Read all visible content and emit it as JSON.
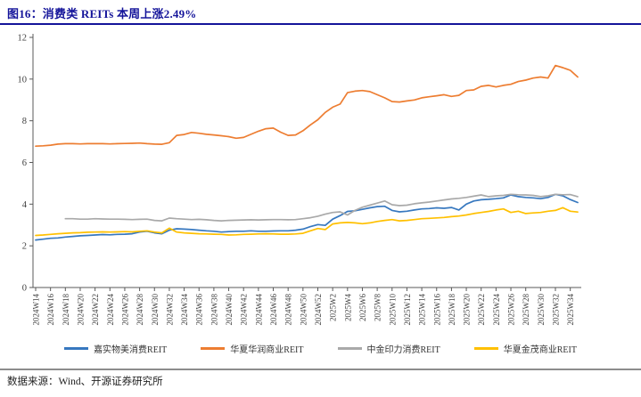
{
  "figure": {
    "title": "图16：消费类 REITs 本周上涨2.49%",
    "source": "数据来源：Wind、开源证券研究所",
    "accent_color": "#14149A",
    "axis_color": "#595959",
    "tick_text_color": "#404040"
  },
  "chart_data": {
    "type": "line",
    "title": "消费类 REITs 本周上涨2.49%",
    "xlabel": "",
    "ylabel": "",
    "ylim": [
      0,
      12
    ],
    "yticks": [
      0,
      2,
      4,
      6,
      8,
      10,
      12
    ],
    "grid": false,
    "legend_position": "bottom",
    "x": [
      "2024W14",
      "2024W15",
      "2024W16",
      "2024W17",
      "2024W18",
      "2024W19",
      "2024W20",
      "2024W21",
      "2024W22",
      "2024W23",
      "2024W24",
      "2024W25",
      "2024W26",
      "2024W27",
      "2024W28",
      "2024W29",
      "2024W30",
      "2024W31",
      "2024W32",
      "2024W33",
      "2024W34",
      "2024W35",
      "2024W36",
      "2024W37",
      "2024W38",
      "2024W39",
      "2024W40",
      "2024W41",
      "2024W42",
      "2024W43",
      "2024W44",
      "2024W45",
      "2024W46",
      "2024W47",
      "2024W48",
      "2024W49",
      "2024W50",
      "2024W51",
      "2024W52",
      "2025W1",
      "2025W2",
      "2025W3",
      "2025W4",
      "2025W5",
      "2025W6",
      "2025W7",
      "2025W8",
      "2025W9",
      "2025W10",
      "2025W11",
      "2025W12",
      "2025W13",
      "2025W14",
      "2025W15",
      "2025W16",
      "2025W17",
      "2025W18",
      "2025W19",
      "2025W20",
      "2025W21",
      "2025W22",
      "2025W23",
      "2025W24",
      "2025W25",
      "2025W26",
      "2025W27",
      "2025W28",
      "2025W29",
      "2025W30",
      "2025W31",
      "2025W32",
      "2025W33",
      "2025W34",
      "2025W35"
    ],
    "x_tick_label_every": 2,
    "series": [
      {
        "name": "嘉实物美消费REIT",
        "color": "#3778BF",
        "values": [
          2.28,
          2.32,
          2.36,
          2.38,
          2.42,
          2.45,
          2.48,
          2.5,
          2.52,
          2.54,
          2.53,
          2.55,
          2.56,
          2.58,
          2.66,
          2.7,
          2.62,
          2.58,
          2.75,
          2.82,
          2.8,
          2.78,
          2.75,
          2.72,
          2.7,
          2.66,
          2.68,
          2.7,
          2.7,
          2.72,
          2.7,
          2.7,
          2.71,
          2.72,
          2.72,
          2.75,
          2.8,
          2.92,
          3.02,
          2.98,
          3.28,
          3.45,
          3.65,
          3.68,
          3.75,
          3.82,
          3.88,
          3.9,
          3.7,
          3.63,
          3.66,
          3.72,
          3.77,
          3.79,
          3.82,
          3.8,
          3.84,
          3.72,
          4.0,
          4.15,
          4.21,
          4.23,
          4.26,
          4.3,
          4.44,
          4.36,
          4.32,
          4.3,
          4.26,
          4.32,
          4.47,
          4.4,
          4.22,
          4.08
        ]
      },
      {
        "name": "华夏华润商业REIT",
        "color": "#ED7D31",
        "values": [
          6.78,
          6.8,
          6.83,
          6.88,
          6.9,
          6.9,
          6.89,
          6.9,
          6.9,
          6.9,
          6.89,
          6.9,
          6.91,
          6.92,
          6.93,
          6.9,
          6.88,
          6.87,
          6.95,
          7.3,
          7.34,
          7.44,
          7.4,
          7.35,
          7.32,
          7.28,
          7.24,
          7.16,
          7.2,
          7.35,
          7.5,
          7.62,
          7.65,
          7.45,
          7.3,
          7.32,
          7.52,
          7.8,
          8.05,
          8.4,
          8.65,
          8.8,
          9.35,
          9.42,
          9.45,
          9.4,
          9.25,
          9.1,
          8.92,
          8.9,
          8.95,
          9.0,
          9.1,
          9.15,
          9.2,
          9.25,
          9.17,
          9.22,
          9.45,
          9.48,
          9.65,
          9.7,
          9.62,
          9.7,
          9.75,
          9.88,
          9.95,
          10.05,
          10.1,
          10.05,
          10.65,
          10.55,
          10.42,
          10.1
        ]
      },
      {
        "name": "中金印力消费REIT",
        "color": "#A9A9A9",
        "values": [
          null,
          null,
          null,
          null,
          3.3,
          3.3,
          3.28,
          3.28,
          3.3,
          3.29,
          3.28,
          3.28,
          3.27,
          3.26,
          3.27,
          3.28,
          3.22,
          3.2,
          3.33,
          3.3,
          3.28,
          3.26,
          3.27,
          3.25,
          3.22,
          3.2,
          3.22,
          3.23,
          3.24,
          3.25,
          3.24,
          3.25,
          3.26,
          3.26,
          3.25,
          3.26,
          3.3,
          3.35,
          3.42,
          3.52,
          3.6,
          3.63,
          3.48,
          3.7,
          3.85,
          3.95,
          4.05,
          4.15,
          3.97,
          3.93,
          3.95,
          4.02,
          4.06,
          4.1,
          4.15,
          4.2,
          4.25,
          4.28,
          4.32,
          4.38,
          4.44,
          4.36,
          4.4,
          4.42,
          4.47,
          4.45,
          4.44,
          4.42,
          4.36,
          4.4,
          4.47,
          4.45,
          4.46,
          4.36
        ]
      },
      {
        "name": "华夏金茂商业REIT",
        "color": "#FFC000",
        "values": [
          2.5,
          2.52,
          2.55,
          2.58,
          2.6,
          2.62,
          2.63,
          2.65,
          2.66,
          2.67,
          2.66,
          2.67,
          2.68,
          2.67,
          2.7,
          2.72,
          2.66,
          2.62,
          2.85,
          2.66,
          2.62,
          2.6,
          2.58,
          2.57,
          2.56,
          2.55,
          2.52,
          2.53,
          2.55,
          2.56,
          2.57,
          2.58,
          2.57,
          2.56,
          2.56,
          2.57,
          2.6,
          2.72,
          2.83,
          2.78,
          3.05,
          3.1,
          3.12,
          3.1,
          3.06,
          3.1,
          3.17,
          3.22,
          3.26,
          3.2,
          3.22,
          3.26,
          3.3,
          3.32,
          3.34,
          3.36,
          3.4,
          3.43,
          3.48,
          3.55,
          3.6,
          3.65,
          3.72,
          3.77,
          3.6,
          3.66,
          3.55,
          3.58,
          3.6,
          3.66,
          3.7,
          3.83,
          3.66,
          3.62
        ]
      }
    ]
  }
}
